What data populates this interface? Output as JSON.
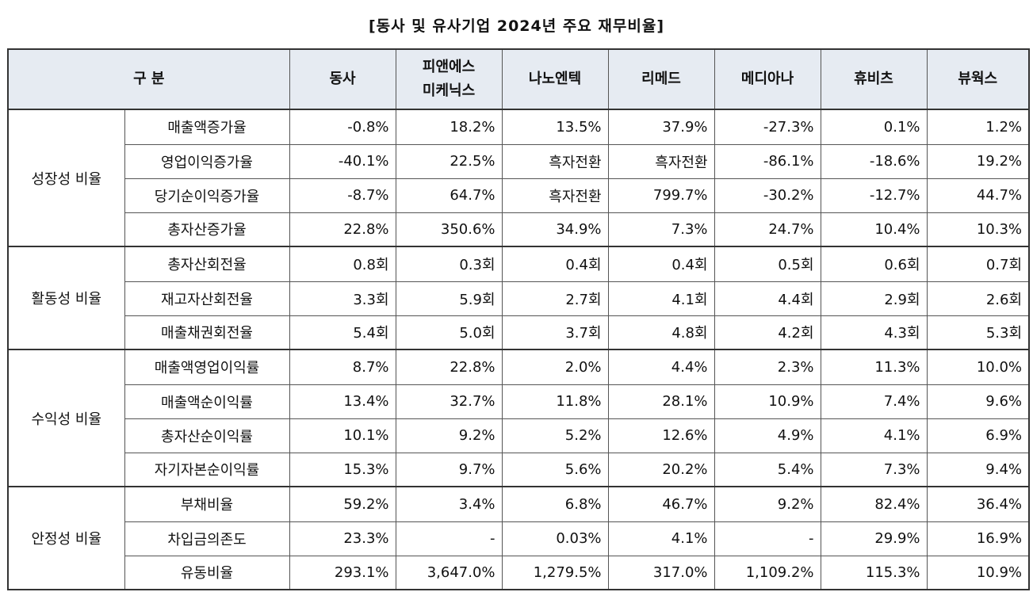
{
  "title": "[동사 및 유사기업 2024년 주요 재무비율]",
  "header": {
    "category": "구 분",
    "companies": [
      [
        "동사"
      ],
      [
        "피앤에스",
        "미케닉스"
      ],
      [
        "나노엔텍"
      ],
      [
        "리메드"
      ],
      [
        "메디아나"
      ],
      [
        "휴비츠"
      ],
      [
        "뷰웍스"
      ]
    ]
  },
  "sections": [
    {
      "group": "성장성 비율",
      "rows": [
        {
          "label": "매출액증가율",
          "values": [
            "-0.8%",
            "18.2%",
            "13.5%",
            "37.9%",
            "-27.3%",
            "0.1%",
            "1.2%"
          ]
        },
        {
          "label": "영업이익증가율",
          "values": [
            "-40.1%",
            "22.5%",
            "흑자전환",
            "흑자전환",
            "-86.1%",
            "-18.6%",
            "19.2%"
          ]
        },
        {
          "label": "당기순이익증가율",
          "values": [
            "-8.7%",
            "64.7%",
            "흑자전환",
            "799.7%",
            "-30.2%",
            "-12.7%",
            "44.7%"
          ]
        },
        {
          "label": "총자산증가율",
          "values": [
            "22.8%",
            "350.6%",
            "34.9%",
            "7.3%",
            "24.7%",
            "10.4%",
            "10.3%"
          ]
        }
      ]
    },
    {
      "group": "활동성 비율",
      "rows": [
        {
          "label": "총자산회전율",
          "values": [
            "0.8회",
            "0.3회",
            "0.4회",
            "0.4회",
            "0.5회",
            "0.6회",
            "0.7회"
          ]
        },
        {
          "label": "재고자산회전율",
          "values": [
            "3.3회",
            "5.9회",
            "2.7회",
            "4.1회",
            "4.4회",
            "2.9회",
            "2.6회"
          ]
        },
        {
          "label": "매출채권회전율",
          "values": [
            "5.4회",
            "5.0회",
            "3.7회",
            "4.8회",
            "4.2회",
            "4.3회",
            "5.3회"
          ]
        }
      ]
    },
    {
      "group": "수익성 비율",
      "rows": [
        {
          "label": "매출액영업이익률",
          "values": [
            "8.7%",
            "22.8%",
            "2.0%",
            "4.4%",
            "2.3%",
            "11.3%",
            "10.0%"
          ]
        },
        {
          "label": "매출액순이익률",
          "values": [
            "13.4%",
            "32.7%",
            "11.8%",
            "28.1%",
            "10.9%",
            "7.4%",
            "9.6%"
          ]
        },
        {
          "label": "총자산순이익률",
          "values": [
            "10.1%",
            "9.2%",
            "5.2%",
            "12.6%",
            "4.9%",
            "4.1%",
            "6.9%"
          ]
        },
        {
          "label": "자기자본순이익률",
          "values": [
            "15.3%",
            "9.7%",
            "5.6%",
            "20.2%",
            "5.4%",
            "7.3%",
            "9.4%"
          ]
        }
      ]
    },
    {
      "group": "안정성 비율",
      "rows": [
        {
          "label": "부채비율",
          "values": [
            "59.2%",
            "3.4%",
            "6.8%",
            "46.7%",
            "9.2%",
            "82.4%",
            "36.4%"
          ]
        },
        {
          "label": "차입금의존도",
          "values": [
            "23.3%",
            "-",
            "0.03%",
            "4.1%",
            "-",
            "29.9%",
            "16.9%"
          ]
        },
        {
          "label": "유동비율",
          "values": [
            "293.1%",
            "3,647.0%",
            "1,279.5%",
            "317.0%",
            "1,109.2%",
            "115.3%",
            "10.9%"
          ]
        }
      ]
    }
  ]
}
